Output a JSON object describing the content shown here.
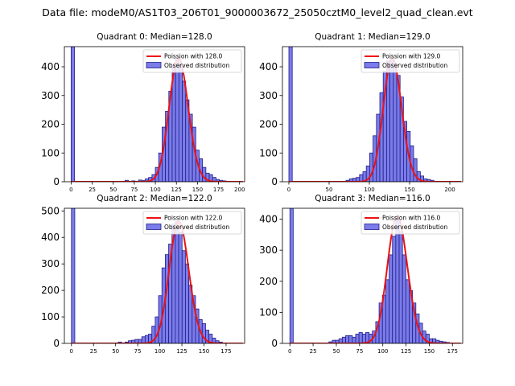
{
  "figure": {
    "suptitle": "Data file: modeM0/AS1T03_206T01_9000003672_25050cztM0_level2_quad_clean.evt"
  },
  "colors": {
    "bar_fill": "#7b7bea",
    "bar_edge": "#1f1f88",
    "poisson_line": "#ee1111"
  },
  "chart_data": [
    {
      "type": "bar",
      "title": "Quadrant 0: Median=128.0",
      "legend": [
        "Poission with 128.0",
        "Observed distribution"
      ],
      "legend_position": "top-right",
      "xlim": [
        -8,
        206
      ],
      "ylim": [
        0,
        470
      ],
      "xticks": [
        0,
        25,
        50,
        75,
        100,
        125,
        150,
        175,
        200
      ],
      "yticks": [
        0,
        100,
        200,
        300,
        400
      ],
      "bin_width": 4,
      "bins_x": [
        0,
        64,
        72,
        80,
        84,
        88,
        92,
        96,
        100,
        104,
        108,
        112,
        116,
        120,
        124,
        128,
        132,
        136,
        140,
        144,
        148,
        152,
        156,
        160,
        164,
        168,
        172,
        176,
        180
      ],
      "counts": [
        470,
        5,
        3,
        6,
        4,
        10,
        15,
        25,
        50,
        100,
        190,
        245,
        315,
        400,
        430,
        405,
        350,
        285,
        235,
        190,
        110,
        80,
        50,
        30,
        25,
        15,
        8,
        5,
        3
      ],
      "poisson_mean": 128.0
    },
    {
      "type": "bar",
      "title": "Quadrant 1: Median=129.0",
      "legend": [
        "Poission with 129.0",
        "Observed distribution"
      ],
      "legend_position": "top-right",
      "xlim": [
        -8,
        216
      ],
      "ylim": [
        0,
        470
      ],
      "xticks": [
        0,
        50,
        100,
        150,
        200
      ],
      "yticks": [
        0,
        100,
        200,
        300,
        400
      ],
      "bin_width": 4.2,
      "bins_x": [
        0,
        71,
        75.2,
        79.4,
        83.6,
        87.8,
        92,
        96.2,
        100.4,
        104.6,
        108.8,
        113,
        117.2,
        121.4,
        125.6,
        129.8,
        134,
        138.2,
        142.4,
        146.6,
        150.8,
        155,
        159.2,
        163.4,
        167.6,
        171.8,
        176
      ],
      "counts": [
        470,
        5,
        10,
        12,
        15,
        25,
        35,
        55,
        100,
        160,
        235,
        310,
        385,
        420,
        430,
        410,
        370,
        295,
        210,
        175,
        125,
        80,
        35,
        20,
        10,
        8,
        5
      ],
      "poisson_mean": 129.0
    },
    {
      "type": "bar",
      "title": "Quadrant 2: Median=122.0",
      "legend": [
        "Poission with 122.0",
        "Observed distribution"
      ],
      "legend_position": "top-right",
      "xlim": [
        -8,
        196
      ],
      "ylim": [
        0,
        510
      ],
      "xticks": [
        0,
        25,
        50,
        75,
        100,
        125,
        150,
        175
      ],
      "yticks": [
        0,
        100,
        200,
        300,
        400,
        500
      ],
      "bin_width": 3.8,
      "bins_x": [
        0,
        53,
        60.6,
        64.4,
        68.2,
        72,
        75.8,
        79.6,
        83.4,
        87.2,
        91,
        94.8,
        98.6,
        102.4,
        106.2,
        110,
        113.8,
        117.6,
        121.4,
        125.2,
        129,
        132.8,
        136.6,
        140.4,
        144.2,
        148,
        151.8,
        155.6,
        159.4,
        163.2,
        167
      ],
      "counts": [
        510,
        5,
        5,
        10,
        12,
        15,
        15,
        25,
        30,
        35,
        65,
        100,
        180,
        285,
        335,
        375,
        450,
        460,
        420,
        350,
        300,
        220,
        180,
        130,
        90,
        75,
        50,
        35,
        20,
        10,
        5
      ],
      "poisson_mean": 122.0
    },
    {
      "type": "bar",
      "title": "Quadrant 3: Median=116.0",
      "legend": [
        "Poission with 116.0",
        "Observed distribution"
      ],
      "legend_position": "top-right",
      "xlim": [
        -8,
        186
      ],
      "ylim": [
        0,
        435
      ],
      "xticks": [
        0,
        25,
        50,
        75,
        100,
        125,
        150,
        175
      ],
      "yticks": [
        0,
        100,
        200,
        300,
        400
      ],
      "bin_width": 3.6,
      "bins_x": [
        0,
        42,
        45.6,
        49.2,
        52.8,
        56.4,
        60,
        63.6,
        67.2,
        70.8,
        74.4,
        78,
        81.6,
        85.2,
        88.8,
        92.4,
        96,
        99.6,
        103.2,
        106.8,
        110.4,
        114,
        117.6,
        121.2,
        124.8,
        128.4,
        132,
        135.6,
        139.2,
        142.8,
        146.4,
        150,
        153.6,
        157.2,
        160.8,
        164.4,
        168
      ],
      "counts": [
        435,
        5,
        10,
        10,
        15,
        20,
        25,
        25,
        20,
        30,
        35,
        30,
        35,
        30,
        40,
        70,
        130,
        155,
        205,
        285,
        345,
        410,
        360,
        285,
        205,
        170,
        130,
        95,
        65,
        40,
        30,
        15,
        15,
        10,
        7,
        5,
        3
      ],
      "poisson_mean": 116.0
    }
  ]
}
